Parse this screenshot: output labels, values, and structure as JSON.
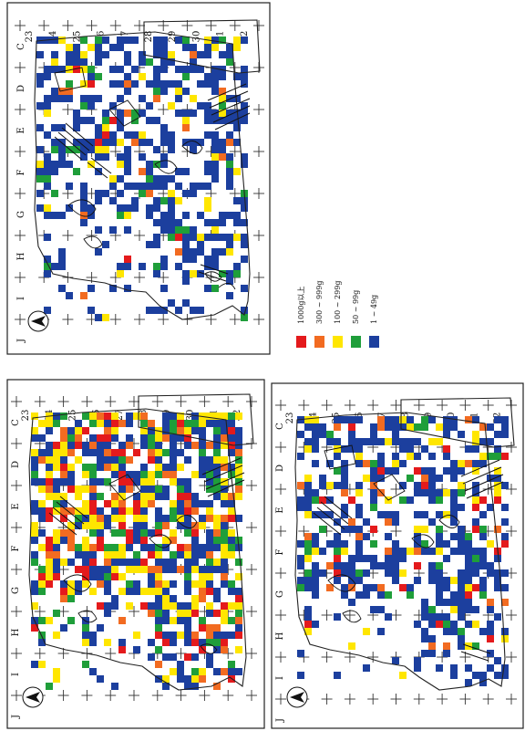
{
  "grid": {
    "col_labels": [
      "23",
      "24",
      "25",
      "26",
      "27",
      "28",
      "29",
      "30",
      "31",
      "32",
      "33"
    ],
    "row_labels": [
      "C",
      "D",
      "E",
      "F",
      "G",
      "H",
      "I",
      "J"
    ]
  },
  "legend": {
    "items": [
      {
        "label": "1000g以上",
        "color": "#e41a1c"
      },
      {
        "label": "300 ~ 999g",
        "color": "#f26b21"
      },
      {
        "label": "100 ~ 299g",
        "color": "#ffe600"
      },
      {
        "label": "50 ~ 99g",
        "color": "#1f9e3a"
      },
      {
        "label": "1 ~ 49g",
        "color": "#1c3f9e"
      }
    ]
  },
  "panels": [
    {
      "name": "top-map",
      "density": {
        "blue": 0.38,
        "green": 0.05,
        "yellow": 0.05,
        "orange": 0.02,
        "red": 0.01
      }
    },
    {
      "name": "bottom-left-map",
      "density": {
        "blue": 0.3,
        "green": 0.1,
        "yellow": 0.16,
        "orange": 0.08,
        "red": 0.08
      }
    },
    {
      "name": "bottom-right-map",
      "density": {
        "blue": 0.36,
        "green": 0.04,
        "yellow": 0.05,
        "orange": 0.03,
        "red": 0.03
      }
    }
  ]
}
